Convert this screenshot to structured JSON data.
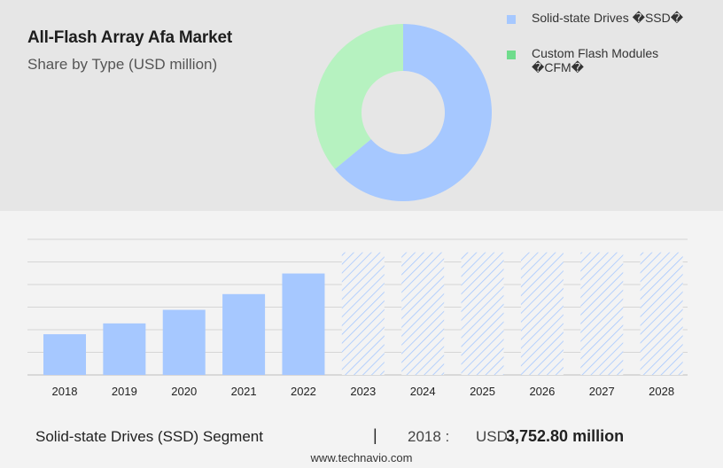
{
  "header": {
    "title": "All-Flash Array Afa Market",
    "subtitle": "Share by Type (USD million)"
  },
  "legend": {
    "items": [
      {
        "label": "Solid-state Drives �SSD�",
        "color": "#a6c8ff"
      },
      {
        "label": "Custom Flash Modules �CFM�",
        "color": "#6fdc8c"
      }
    ]
  },
  "chart_data": [
    {
      "type": "pie",
      "variant": "donut",
      "labels": [
        "Solid-state Drives �SSD�",
        "Custom Flash Modules �CFM�"
      ],
      "values": [
        64,
        36
      ],
      "colors": [
        "#a6c8ff",
        "#b6f2c0"
      ]
    },
    {
      "type": "bar",
      "categories": [
        "2018",
        "2019",
        "2020",
        "2021",
        "2022",
        "2023",
        "2024",
        "2025",
        "2026",
        "2027",
        "2028"
      ],
      "values": [
        3752.8,
        4750,
        6000,
        7450,
        9350,
        11300,
        11300,
        11300,
        11300,
        11300,
        11300
      ],
      "forecast_from": "2023",
      "ylim": [
        0,
        12500
      ],
      "grid": true,
      "bar_color": "#a6c8ff",
      "forecast_color": "#a6c8ff"
    }
  ],
  "footer": {
    "segment": "Solid-state Drives (SSD) Segment",
    "separator": "|",
    "year": "2018 :",
    "unit": "USD",
    "value": "3,752.80 million"
  },
  "source": "www.technavio.com"
}
